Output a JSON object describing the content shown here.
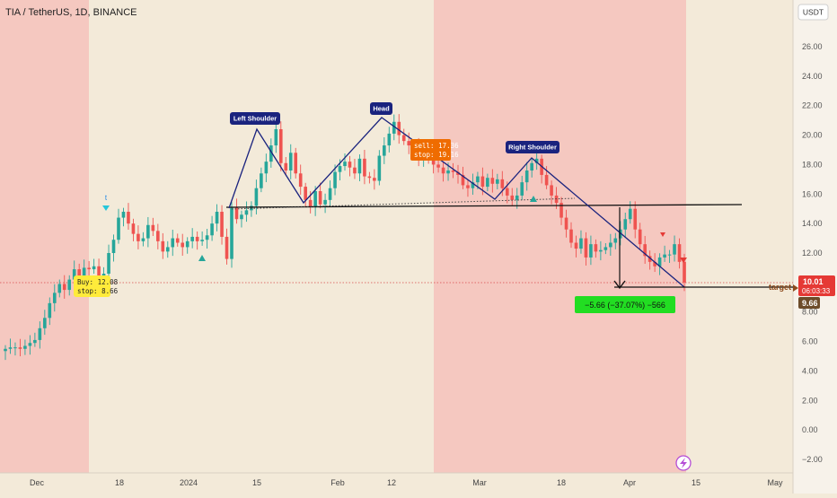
{
  "chart_data": {
    "type": "candlestick",
    "title": "TIA / TetherUS, 1D, BINANCE",
    "currency": "USDT",
    "ylim": [
      -3,
      28.4
    ],
    "y_ticks": [
      "26.00",
      "24.00",
      "22.00",
      "20.00",
      "18.00",
      "16.00",
      "14.00",
      "12.00",
      "10.00",
      "8.00",
      "6.00",
      "4.00",
      "2.00",
      "0.00",
      "−2.00"
    ],
    "x_ticks": [
      "Dec",
      "18",
      "2024",
      "15",
      "Feb",
      "12",
      "Mar",
      "18",
      "Apr",
      "15",
      "May"
    ],
    "price_label": "10.01",
    "countdown": "06:03:33",
    "low_label": "9.66",
    "target_label": "target",
    "current_price": 10.01,
    "neckline": 15.2,
    "target_price": 9.66,
    "patterns": [
      {
        "label": "Left Shoulder",
        "value": 20.4
      },
      {
        "label": "Head",
        "value": 21.2
      },
      {
        "label": "Right Shoulder",
        "value": 18.5
      }
    ],
    "buy_box": [
      "Buy: 12.08",
      "stop: 8.66"
    ],
    "sell_box": [
      "sell: 17.36",
      "stop: 19.16"
    ],
    "measure_label": "−5.66 (−37.07%) −566",
    "signal_label": "t",
    "closes": [
      5.5,
      5.6,
      5.6,
      5.5,
      5.7,
      5.9,
      6.1,
      6.9,
      7.6,
      8.6,
      9.3,
      9.9,
      9.5,
      10.2,
      10.9,
      10.4,
      11.0,
      10.9,
      11.1,
      10.3,
      10.6,
      12.0,
      12.9,
      14.4,
      14.8,
      14.0,
      13.3,
      12.8,
      13.0,
      13.9,
      13.5,
      12.8,
      12.1,
      12.4,
      13.0,
      12.7,
      12.4,
      12.8,
      13.1,
      12.8,
      12.9,
      13.2,
      14.0,
      14.8,
      13.1,
      11.6,
      15.1,
      14.3,
      14.6,
      14.9,
      15.2,
      16.4,
      17.4,
      18.2,
      19.3,
      20.4,
      18.1,
      17.6,
      18.8,
      17.4,
      16.5,
      15.6,
      15.1,
      16.2,
      15.3,
      15.6,
      16.4,
      17.5,
      17.9,
      18.2,
      17.8,
      17.4,
      18.4,
      17.2,
      17.1,
      16.9,
      18.6,
      19.3,
      20.1,
      20.9,
      20.0,
      19.6,
      19.3,
      19.2,
      18.4,
      18.8,
      18.4,
      18.0,
      17.8,
      17.4,
      17.6,
      17.5,
      17.3,
      16.6,
      16.4,
      16.8,
      17.2,
      16.5,
      17.1,
      16.7,
      17.0,
      16.4,
      15.9,
      15.6,
      15.9,
      16.8,
      17.6,
      18.1,
      18.4,
      17.3,
      16.6,
      15.9,
      15.4,
      14.4,
      13.6,
      12.7,
      12.3,
      13.0,
      11.7,
      12.6,
      12.1,
      12.2,
      12.4,
      12.7,
      13.0,
      13.6,
      14.3,
      15.0,
      13.6,
      12.6,
      11.8,
      11.4,
      11.1,
      11.7,
      11.9,
      11.9,
      12.6,
      11.4,
      10.0
    ]
  }
}
